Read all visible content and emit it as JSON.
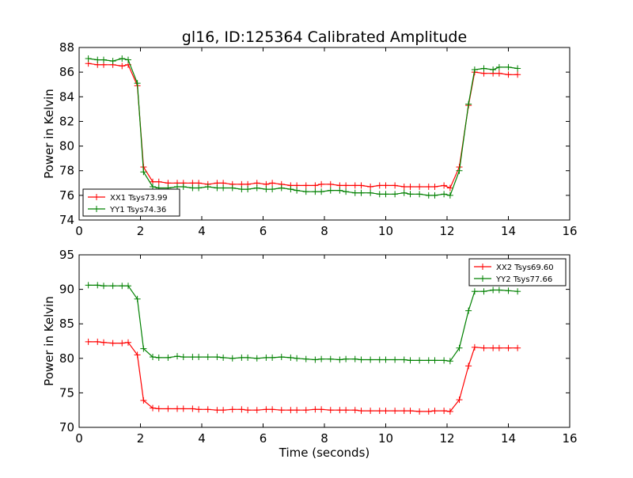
{
  "title": "gl16, ID:125364 Calibrated Amplitude",
  "chart_data": [
    {
      "type": "line",
      "title": "gl16, ID:125364 Calibrated Amplitude",
      "xlabel": "",
      "ylabel": "Power in Kelvin",
      "xlim": [
        0,
        16
      ],
      "ylim": [
        74,
        88
      ],
      "xticks": [
        0,
        2,
        4,
        6,
        8,
        10,
        12,
        14,
        16
      ],
      "yticks": [
        74,
        76,
        78,
        80,
        82,
        84,
        86,
        88
      ],
      "grid": false,
      "legend_position": "lower-left",
      "x": [
        0.3,
        0.6,
        0.8,
        1.1,
        1.4,
        1.6,
        1.9,
        2.1,
        2.4,
        2.6,
        2.9,
        3.2,
        3.4,
        3.7,
        3.9,
        4.2,
        4.5,
        4.7,
        5.0,
        5.3,
        5.5,
        5.8,
        6.1,
        6.3,
        6.6,
        6.9,
        7.1,
        7.4,
        7.7,
        7.9,
        8.2,
        8.5,
        8.7,
        9.0,
        9.2,
        9.5,
        9.8,
        10.0,
        10.3,
        10.6,
        10.8,
        11.1,
        11.4,
        11.6,
        11.9,
        12.1,
        12.4,
        12.7,
        12.9,
        13.2,
        13.5,
        13.7,
        14.0,
        14.3
      ],
      "series": [
        {
          "name": "XX1 Tsys73.99",
          "color": "#ff0000",
          "values": [
            86.7,
            86.6,
            86.6,
            86.6,
            86.5,
            86.6,
            84.9,
            78.3,
            77.1,
            77.1,
            77.0,
            77.0,
            77.0,
            77.0,
            77.0,
            76.9,
            77.0,
            77.0,
            76.9,
            76.9,
            76.9,
            77.0,
            76.9,
            77.0,
            76.9,
            76.8,
            76.8,
            76.8,
            76.8,
            76.9,
            76.9,
            76.8,
            76.8,
            76.8,
            76.8,
            76.7,
            76.8,
            76.8,
            76.8,
            76.7,
            76.7,
            76.7,
            76.7,
            76.7,
            76.8,
            76.6,
            78.3,
            83.3,
            86.0,
            85.9,
            85.9,
            85.9,
            85.8,
            85.8
          ]
        },
        {
          "name": "YY1 Tsys74.36",
          "color": "#008000",
          "values": [
            87.1,
            87.0,
            87.0,
            86.9,
            87.1,
            87.0,
            85.1,
            77.9,
            76.7,
            76.6,
            76.6,
            76.7,
            76.7,
            76.6,
            76.6,
            76.7,
            76.6,
            76.6,
            76.6,
            76.5,
            76.5,
            76.6,
            76.5,
            76.5,
            76.6,
            76.5,
            76.4,
            76.3,
            76.3,
            76.3,
            76.4,
            76.4,
            76.3,
            76.2,
            76.2,
            76.2,
            76.1,
            76.1,
            76.1,
            76.2,
            76.1,
            76.1,
            76.0,
            76.0,
            76.1,
            76.0,
            78.0,
            83.4,
            86.2,
            86.3,
            86.2,
            86.4,
            86.4,
            86.3
          ]
        }
      ]
    },
    {
      "type": "line",
      "title": "",
      "xlabel": "Time (seconds)",
      "ylabel": "Power in Kelvin",
      "xlim": [
        0,
        16
      ],
      "ylim": [
        70,
        95
      ],
      "xticks": [
        0,
        2,
        4,
        6,
        8,
        10,
        12,
        14,
        16
      ],
      "yticks": [
        70,
        75,
        80,
        85,
        90,
        95
      ],
      "grid": false,
      "legend_position": "upper-right",
      "x": [
        0.3,
        0.6,
        0.8,
        1.1,
        1.4,
        1.6,
        1.9,
        2.1,
        2.4,
        2.6,
        2.9,
        3.2,
        3.4,
        3.7,
        3.9,
        4.2,
        4.5,
        4.7,
        5.0,
        5.3,
        5.5,
        5.8,
        6.1,
        6.3,
        6.6,
        6.9,
        7.1,
        7.4,
        7.7,
        7.9,
        8.2,
        8.5,
        8.7,
        9.0,
        9.2,
        9.5,
        9.8,
        10.0,
        10.3,
        10.6,
        10.8,
        11.1,
        11.4,
        11.6,
        11.9,
        12.1,
        12.4,
        12.7,
        12.9,
        13.2,
        13.5,
        13.7,
        14.0,
        14.3
      ],
      "series": [
        {
          "name": "XX2 Tsys69.60",
          "color": "#ff0000",
          "values": [
            82.4,
            82.4,
            82.3,
            82.2,
            82.2,
            82.3,
            80.5,
            73.9,
            72.8,
            72.7,
            72.7,
            72.7,
            72.7,
            72.7,
            72.6,
            72.6,
            72.5,
            72.5,
            72.6,
            72.6,
            72.5,
            72.5,
            72.6,
            72.6,
            72.5,
            72.5,
            72.5,
            72.5,
            72.6,
            72.6,
            72.5,
            72.5,
            72.5,
            72.5,
            72.4,
            72.4,
            72.4,
            72.4,
            72.4,
            72.4,
            72.4,
            72.3,
            72.3,
            72.4,
            72.4,
            72.3,
            74.0,
            78.9,
            81.6,
            81.5,
            81.5,
            81.5,
            81.5,
            81.5
          ]
        },
        {
          "name": "YY2 Tsys77.66",
          "color": "#008000",
          "values": [
            90.6,
            90.6,
            90.5,
            90.5,
            90.5,
            90.5,
            88.6,
            81.4,
            80.2,
            80.1,
            80.1,
            80.3,
            80.2,
            80.2,
            80.2,
            80.2,
            80.2,
            80.1,
            80.0,
            80.1,
            80.1,
            80.0,
            80.1,
            80.1,
            80.2,
            80.1,
            80.0,
            79.9,
            79.8,
            79.9,
            79.9,
            79.8,
            79.9,
            79.9,
            79.8,
            79.8,
            79.8,
            79.8,
            79.8,
            79.8,
            79.7,
            79.7,
            79.7,
            79.7,
            79.7,
            79.6,
            81.5,
            86.9,
            89.7,
            89.7,
            89.9,
            89.9,
            89.8,
            89.7
          ]
        }
      ]
    }
  ]
}
